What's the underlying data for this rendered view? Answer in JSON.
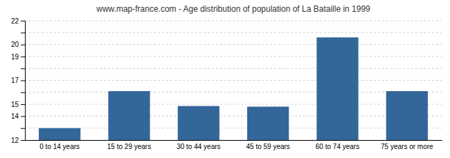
{
  "chart_data": {
    "type": "bar",
    "title": "www.map-france.com - Age distribution of population of La Bataille in 1999",
    "categories": [
      "0 to 14 years",
      "15 to 29 years",
      "30 to 44 years",
      "45 to 59 years",
      "60 to 74 years",
      "75 years or more"
    ],
    "values": [
      13.0,
      16.1,
      14.85,
      14.8,
      20.6,
      16.1
    ],
    "color": "#336699",
    "ylim": [
      12,
      22
    ],
    "yticks": [
      12,
      {
        "value": 13,
        "label": null
      },
      14,
      15,
      {
        "value": 16,
        "label": null
      },
      17,
      {
        "value": 18,
        "label": null
      },
      19,
      20,
      {
        "value": 21,
        "label": null
      },
      22
    ],
    "grid": true
  }
}
